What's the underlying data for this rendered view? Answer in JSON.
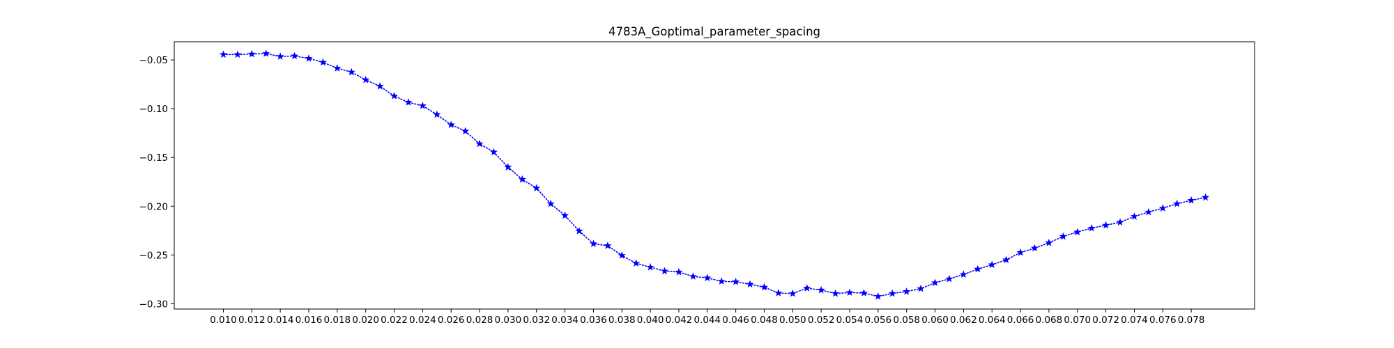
{
  "chart_data": {
    "type": "line",
    "title": "4783A_Goptimal_parameter_spacing",
    "xlabel": "",
    "ylabel": "",
    "x": [
      0.01,
      0.011,
      0.012,
      0.013,
      0.014,
      0.015,
      0.016,
      0.017,
      0.018,
      0.019,
      0.02,
      0.021,
      0.022,
      0.023,
      0.024,
      0.025,
      0.026,
      0.027,
      0.028,
      0.029,
      0.03,
      0.031,
      0.032,
      0.033,
      0.034,
      0.035,
      0.036,
      0.037,
      0.038,
      0.039,
      0.04,
      0.041,
      0.042,
      0.043,
      0.044,
      0.045,
      0.046,
      0.047,
      0.048,
      0.049,
      0.05,
      0.051,
      0.052,
      0.053,
      0.054,
      0.055,
      0.056,
      0.057,
      0.058,
      0.059,
      0.06,
      0.061,
      0.062,
      0.063,
      0.064,
      0.065,
      0.066,
      0.067,
      0.068,
      0.069,
      0.07,
      0.071,
      0.072,
      0.073,
      0.074,
      0.075,
      0.076,
      0.077,
      0.078,
      0.079
    ],
    "series": [
      {
        "color": "#0000ff",
        "marker": "star",
        "linestyle": "dotted",
        "values": [
          -0.0445,
          -0.0445,
          -0.044,
          -0.0435,
          -0.0465,
          -0.046,
          -0.0485,
          -0.0525,
          -0.0585,
          -0.0625,
          -0.0705,
          -0.077,
          -0.087,
          -0.0935,
          -0.097,
          -0.106,
          -0.1165,
          -0.123,
          -0.136,
          -0.1445,
          -0.16,
          -0.1725,
          -0.1815,
          -0.1975,
          -0.2095,
          -0.2255,
          -0.2385,
          -0.2405,
          -0.2505,
          -0.2585,
          -0.2625,
          -0.2665,
          -0.2675,
          -0.272,
          -0.2735,
          -0.277,
          -0.2775,
          -0.28,
          -0.283,
          -0.289,
          -0.2895,
          -0.284,
          -0.286,
          -0.2895,
          -0.2885,
          -0.289,
          -0.2925,
          -0.2895,
          -0.2875,
          -0.2845,
          -0.2785,
          -0.2745,
          -0.27,
          -0.2645,
          -0.26,
          -0.255,
          -0.2475,
          -0.243,
          -0.2375,
          -0.231,
          -0.2265,
          -0.2225,
          -0.2195,
          -0.2165,
          -0.2105,
          -0.206,
          -0.202,
          -0.1975,
          -0.194,
          -0.191
        ]
      }
    ],
    "xticks": [
      "0.010",
      "0.012",
      "0.014",
      "0.016",
      "0.018",
      "0.020",
      "0.022",
      "0.024",
      "0.026",
      "0.028",
      "0.030",
      "0.032",
      "0.034",
      "0.036",
      "0.038",
      "0.040",
      "0.042",
      "0.044",
      "0.046",
      "0.048",
      "0.050",
      "0.052",
      "0.054",
      "0.056",
      "0.058",
      "0.060",
      "0.062",
      "0.064",
      "0.066",
      "0.068",
      "0.070",
      "0.072",
      "0.074",
      "0.076",
      "0.078"
    ],
    "yticks": [
      "−0.05",
      "−0.10",
      "−0.15",
      "−0.20",
      "−0.25",
      "−0.30"
    ],
    "xlim": [
      0.00655,
      0.08245
    ],
    "ylim": [
      -0.3054,
      -0.0314
    ],
    "grid": false,
    "legend": "none"
  }
}
